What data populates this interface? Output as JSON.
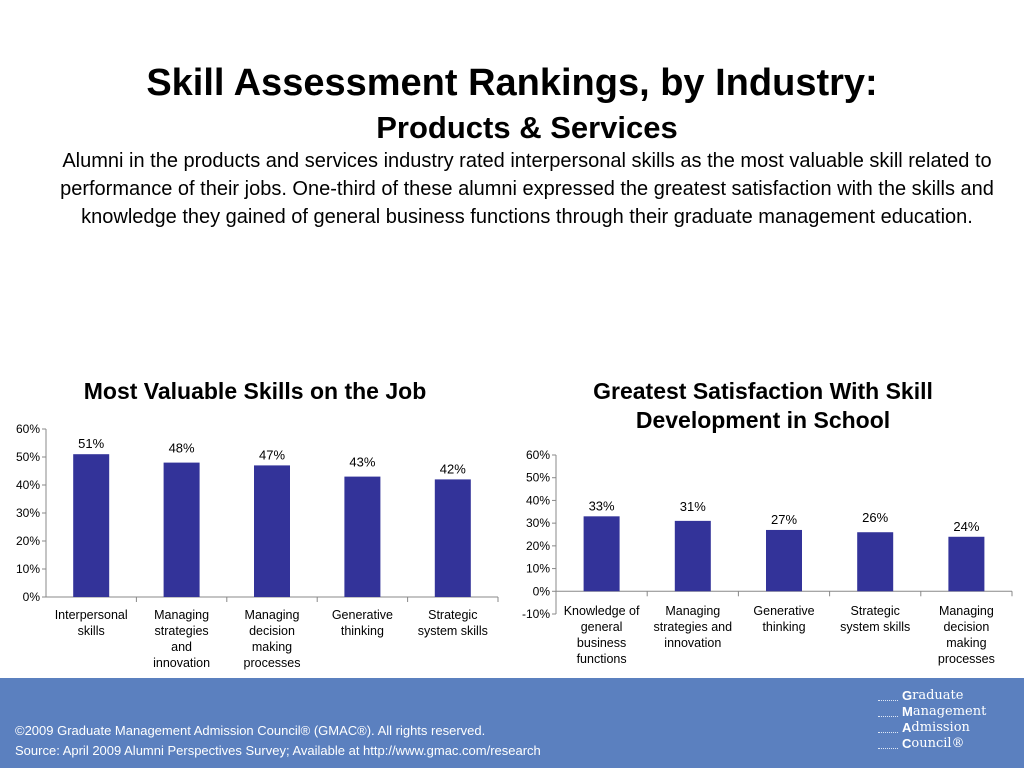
{
  "header": {
    "title": "Skill Assessment Rankings, by Industry:",
    "subtitle": "Products & Services",
    "description": "Alumni in the products and services industry rated interpersonal skills as the most valuable skill related to performance of their jobs. One-third of these alumni expressed the greatest satisfaction with the skills and knowledge they gained of general business functions through their graduate management education."
  },
  "chart_data": [
    {
      "type": "bar",
      "title": "Most Valuable Skills on the Job",
      "categories": [
        [
          "Interpersonal",
          "skills"
        ],
        [
          "Managing",
          "strategies",
          "and",
          "innovation"
        ],
        [
          "Managing",
          "decision",
          "making",
          "processes"
        ],
        [
          "Generative",
          "thinking"
        ],
        [
          "Strategic",
          "system skills"
        ]
      ],
      "values": [
        51,
        48,
        47,
        43,
        42
      ],
      "data_labels": [
        "51%",
        "48%",
        "47%",
        "43%",
        "42%"
      ],
      "yticks": [
        "0%",
        "10%",
        "20%",
        "30%",
        "40%",
        "50%",
        "60%"
      ],
      "ylim": [
        0,
        60
      ],
      "grid": false,
      "bar_color": "#333399"
    },
    {
      "type": "bar",
      "title": "Greatest Satisfaction With Skill Development in School",
      "categories": [
        [
          "Knowledge of",
          "general",
          "business",
          "functions"
        ],
        [
          "Managing",
          "strategies and",
          "innovation"
        ],
        [
          "Generative",
          "thinking"
        ],
        [
          "Strategic",
          "system skills"
        ],
        [
          "Managing",
          "decision",
          "making",
          "processes"
        ]
      ],
      "values": [
        33,
        31,
        27,
        26,
        24
      ],
      "data_labels": [
        "33%",
        "31%",
        "27%",
        "26%",
        "24%"
      ],
      "yticks": [
        "-10%",
        "0%",
        "10%",
        "20%",
        "30%",
        "40%",
        "50%",
        "60%"
      ],
      "ylim": [
        -10,
        60
      ],
      "grid": false,
      "bar_color": "#333399"
    }
  ],
  "footer": {
    "copyright": "©2009 Graduate Management Admission Council® (GMAC®). All rights reserved.",
    "source": "Source: April 2009 Alumni Perspectives Survey; Available at http://www.gmac.com/research",
    "logo": [
      {
        "initial": "G",
        "rest": "raduate"
      },
      {
        "initial": "M",
        "rest": "anagement"
      },
      {
        "initial": "A",
        "rest": "dmission"
      },
      {
        "initial": "C",
        "rest": "ouncil®"
      }
    ],
    "background": "#5b80bf"
  }
}
